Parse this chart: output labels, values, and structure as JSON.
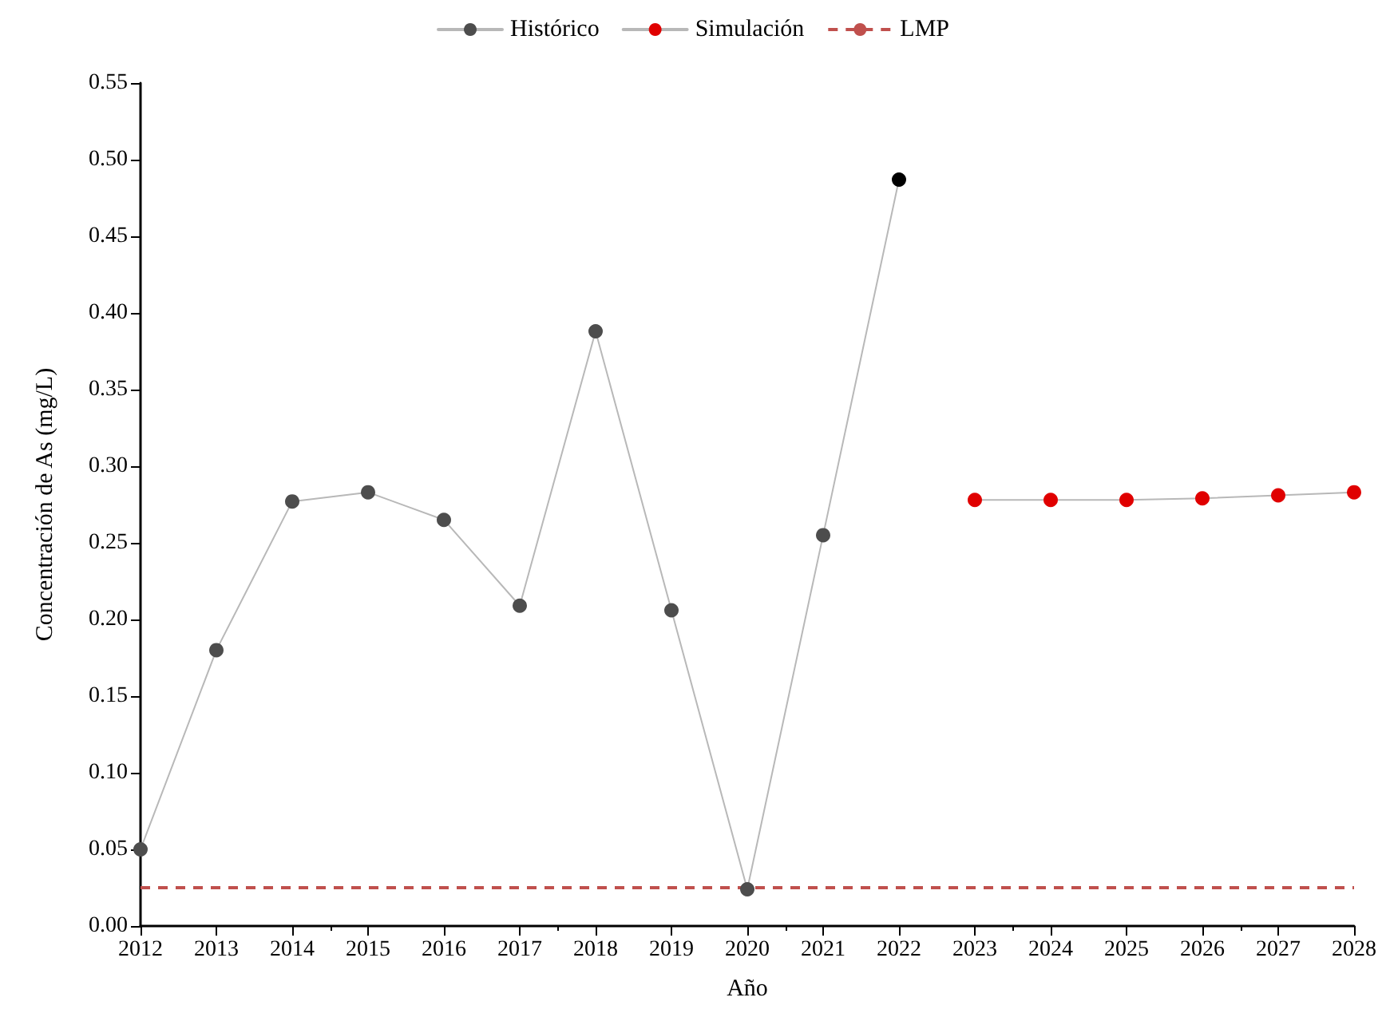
{
  "chart_data": {
    "type": "line",
    "xlabel": "Año",
    "ylabel": "Concentración de As (mg/L)",
    "xlim": [
      2012,
      2028
    ],
    "xticks": [
      2012,
      2013,
      2014,
      2015,
      2016,
      2017,
      2018,
      2019,
      2020,
      2021,
      2022,
      2023,
      2024,
      2025,
      2026,
      2027,
      2028
    ],
    "ylim": [
      0,
      0.55
    ],
    "yticks": [
      {
        "value": 0,
        "label": "0.00"
      },
      0.05,
      {
        "value": 0.1,
        "label": "0.10"
      },
      0.15,
      {
        "value": 0.2,
        "label": "0.20"
      },
      0.25,
      {
        "value": 0.3,
        "label": "0.30"
      },
      0.35,
      {
        "value": 0.4,
        "label": "0.40"
      },
      0.45,
      {
        "value": 0.5,
        "label": "0.50"
      },
      0.55
    ],
    "series": [
      {
        "name": "Histórico",
        "color": "#4d4d4d",
        "colors": [
          "#4d4d4d",
          "#4d4d4d",
          "#4d4d4d",
          "#4d4d4d",
          "#4d4d4d",
          "#4d4d4d",
          "#4d4d4d",
          "#4d4d4d",
          "#4d4d4d",
          "#4d4d4d",
          "#000000"
        ],
        "x": [
          2012,
          2013,
          2014,
          2015,
          2016,
          2017,
          2018,
          2019,
          2020,
          2021,
          2022
        ],
        "values": [
          0.05,
          0.18,
          0.277,
          0.283,
          0.265,
          0.209,
          0.388,
          0.206,
          0.024,
          0.255,
          0.487
        ]
      },
      {
        "name": "Simulación",
        "color": "#e00000",
        "x": [
          2023,
          2024,
          2025,
          2026,
          2027,
          2028
        ],
        "values": [
          0.278,
          0.278,
          0.278,
          0.279,
          0.281,
          0.283
        ]
      }
    ],
    "ref_lines": [
      {
        "axis": "y",
        "value": 0.025,
        "label": "LMP",
        "color": "#c0504d",
        "line_style": "dashed"
      }
    ],
    "marker": "circle",
    "line_style": "solid",
    "grid": false,
    "legend": "top"
  }
}
